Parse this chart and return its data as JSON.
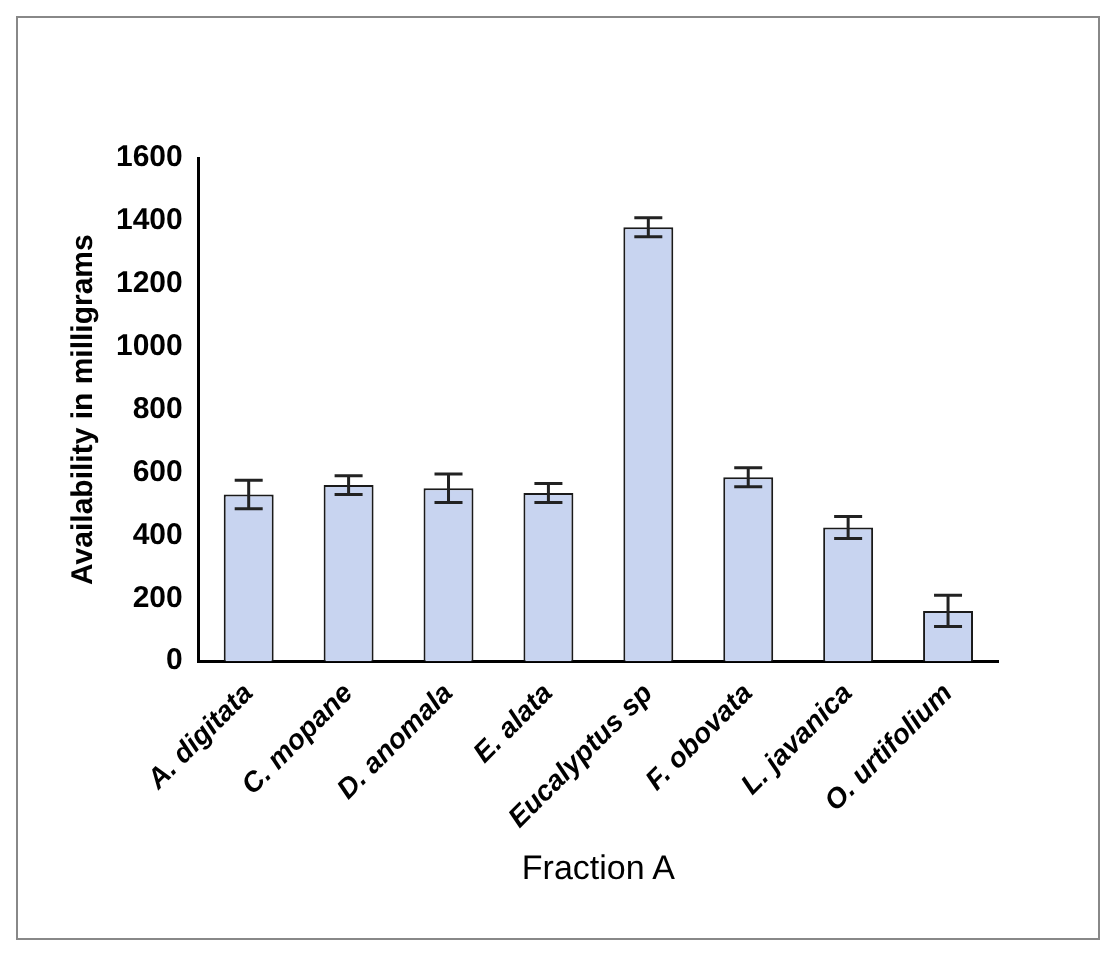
{
  "chart_data": {
    "type": "bar",
    "xlabel": "Fraction A",
    "ylabel": "Availability in milligrams",
    "categories": [
      "A. digitata",
      "C. mopane",
      "D. anomala",
      "E. alata",
      "Eucalyptus sp",
      "F. obovata",
      "L. javanica",
      "O. urtifolium"
    ],
    "values": [
      530,
      560,
      550,
      535,
      1380,
      585,
      425,
      160
    ],
    "errors": [
      45,
      30,
      45,
      30,
      30,
      30,
      35,
      50
    ],
    "color": "#c8d4f0",
    "ylim": [
      0,
      1600
    ],
    "yticks": [
      0,
      200,
      400,
      600,
      800,
      1000,
      1200,
      1400,
      1600
    ],
    "grid": false,
    "legend": false
  }
}
